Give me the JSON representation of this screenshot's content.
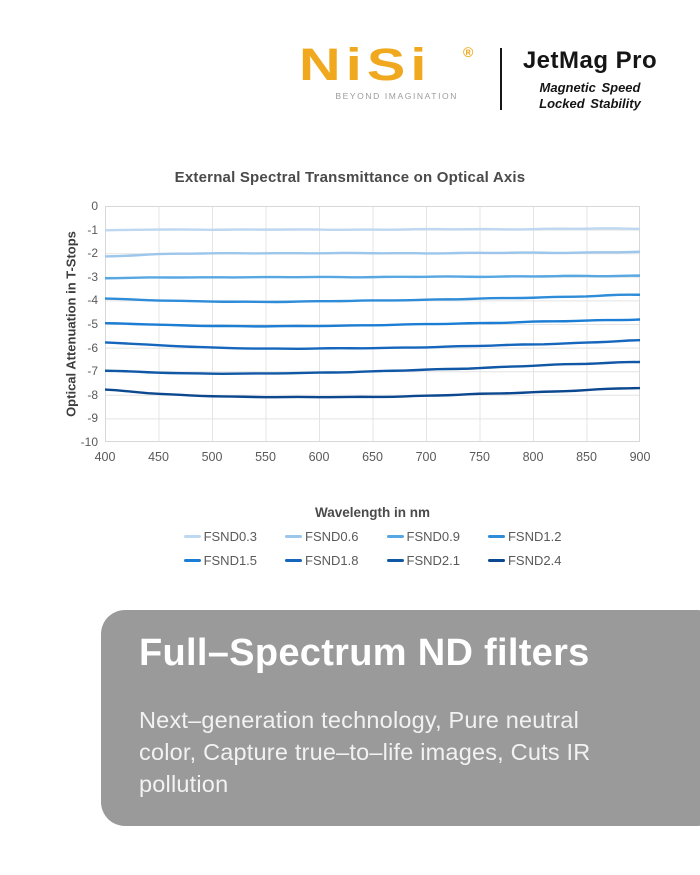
{
  "header": {
    "logo_text": "NiSi",
    "logo_registered": "®",
    "logo_tagline": "BEYOND IMAGINATION",
    "brand_color": "#F0A91F",
    "product_name": "JetMag Pro",
    "product_tagline_line1": "Magnetic Speed",
    "product_tagline_line2": "Locked Stability"
  },
  "chart_data": {
    "type": "line",
    "title": "External Spectral Transmittance on Optical Axis",
    "xlabel": "Wavelength in nm",
    "ylabel": "Optical Attenuation in T-Stops",
    "xlim": [
      400,
      900
    ],
    "ylim": [
      -10,
      0
    ],
    "x_ticks": [
      400,
      450,
      500,
      550,
      600,
      650,
      700,
      750,
      800,
      850,
      900
    ],
    "y_ticks": [
      0,
      -1,
      -2,
      -3,
      -4,
      -5,
      -6,
      -7,
      -8,
      -9,
      -10
    ],
    "grid": true,
    "grid_color": "#E4E4E4",
    "border_color": "#D8D8D8",
    "legend_position": "bottom",
    "legend_rows": [
      [
        "FSND0.3",
        "FSND0.6",
        "FSND0.9",
        "FSND1.2"
      ],
      [
        "FSND1.5",
        "FSND1.8",
        "FSND2.1",
        "FSND2.4"
      ]
    ],
    "x": [
      400,
      450,
      500,
      550,
      600,
      650,
      700,
      750,
      800,
      850,
      900
    ],
    "series": [
      {
        "name": "FSND0.3",
        "color": "#BDD8F0",
        "values": [
          -1.03,
          -1.0,
          -1.0,
          -1.0,
          -1.0,
          -1.0,
          -0.99,
          -0.98,
          -0.98,
          -0.96,
          -0.95
        ]
      },
      {
        "name": "FSND0.6",
        "color": "#9CC6EB",
        "values": [
          -2.14,
          -2.04,
          -2.01,
          -2.0,
          -2.0,
          -2.0,
          -2.0,
          -1.99,
          -1.98,
          -1.97,
          -1.95
        ]
      },
      {
        "name": "FSND0.9",
        "color": "#57A7E2",
        "values": [
          -3.06,
          -3.03,
          -3.02,
          -3.02,
          -3.01,
          -3.01,
          -3.0,
          -2.99,
          -2.98,
          -2.97,
          -2.95
        ]
      },
      {
        "name": "FSND1.2",
        "color": "#2E8CD8",
        "values": [
          -3.92,
          -4.0,
          -4.05,
          -4.06,
          -4.04,
          -4.01,
          -3.97,
          -3.93,
          -3.88,
          -3.82,
          -3.76
        ]
      },
      {
        "name": "FSND1.5",
        "color": "#1B7DD3",
        "values": [
          -4.97,
          -5.03,
          -5.08,
          -5.1,
          -5.08,
          -5.05,
          -5.01,
          -4.96,
          -4.91,
          -4.86,
          -4.8
        ]
      },
      {
        "name": "FSND1.8",
        "color": "#1566BC",
        "values": [
          -5.78,
          -5.9,
          -6.0,
          -6.04,
          -6.04,
          -6.02,
          -5.98,
          -5.93,
          -5.86,
          -5.79,
          -5.7
        ]
      },
      {
        "name": "FSND2.1",
        "color": "#1057A6",
        "values": [
          -6.98,
          -7.06,
          -7.1,
          -7.1,
          -7.06,
          -7.01,
          -6.94,
          -6.86,
          -6.77,
          -6.68,
          -6.6
        ]
      },
      {
        "name": "FSND2.4",
        "color": "#0C488F",
        "values": [
          -7.78,
          -7.96,
          -8.06,
          -8.09,
          -8.1,
          -8.09,
          -8.04,
          -7.97,
          -7.89,
          -7.8,
          -7.71
        ]
      }
    ]
  },
  "card": {
    "title": "Full–Spectrum ND filters",
    "description": "Next–generation technology, Pure neutral\ncolor, Capture true–to–life images, Cuts IR\npollution",
    "background_color": "#9A9A9A"
  }
}
